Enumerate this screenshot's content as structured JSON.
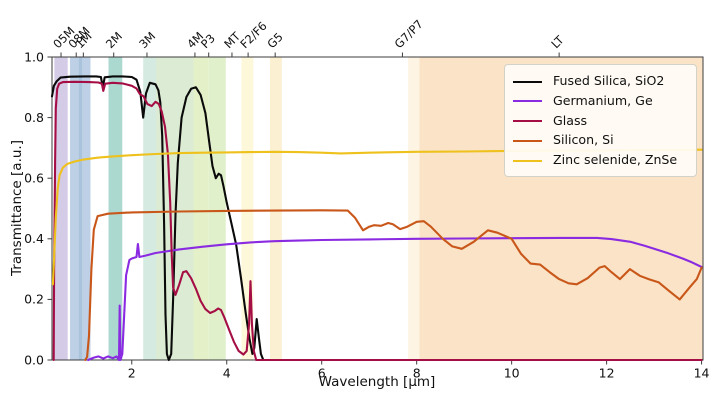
{
  "chart_data": {
    "type": "line",
    "title": "",
    "xlabel": "Wavelength [μm]",
    "ylabel": "Transmittance [a.u.]",
    "xlim": [
      0.32,
      14.03
    ],
    "ylim": [
      0.0,
      1.0
    ],
    "grid": false,
    "legend_position": "upper right",
    "x_ticks": [
      2,
      4,
      6,
      8,
      10,
      12,
      14
    ],
    "y_ticks": [
      "0.0",
      "0.2",
      "0.4",
      "0.6",
      "0.8",
      "1.0"
    ],
    "top_ticks": [
      {
        "x": 0.51,
        "label": "05M"
      },
      {
        "x": 0.83,
        "label": "08M"
      },
      {
        "x": 0.98,
        "label": "1M"
      },
      {
        "x": 1.62,
        "label": "2M"
      },
      {
        "x": 2.32,
        "label": "3M"
      },
      {
        "x": 3.33,
        "label": "4M"
      },
      {
        "x": 3.62,
        "label": "P3"
      },
      {
        "x": 4.11,
        "label": "MT"
      },
      {
        "x": 4.45,
        "label": "F2/F6"
      },
      {
        "x": 5.02,
        "label": "G5"
      },
      {
        "x": 7.7,
        "label": "G7/P7"
      },
      {
        "x": 11.0,
        "label": "LT"
      }
    ],
    "bands": [
      {
        "from": 0.37,
        "to": 0.65,
        "color": "#d4cbe6"
      },
      {
        "from": 0.7,
        "to": 0.88,
        "color": "#bdd0e5"
      },
      {
        "from": 0.88,
        "to": 0.96,
        "color": "#aac3dd"
      },
      {
        "from": 0.96,
        "to": 1.13,
        "color": "#bdd0e5"
      },
      {
        "from": 1.51,
        "to": 1.8,
        "color": "#abd9d0"
      },
      {
        "from": 2.24,
        "to": 2.51,
        "color": "#d5eae0"
      },
      {
        "from": 2.51,
        "to": 3.3,
        "color": "#dcecd4"
      },
      {
        "from": 3.3,
        "to": 3.62,
        "color": "#e4f0c8"
      },
      {
        "from": 3.62,
        "to": 3.98,
        "color": "#dff0cb"
      },
      {
        "from": 4.31,
        "to": 4.56,
        "color": "#fcf8d9"
      },
      {
        "from": 4.91,
        "to": 5.16,
        "color": "#fcf0d2"
      },
      {
        "from": 7.82,
        "to": 8.06,
        "color": "#fdf4e3"
      },
      {
        "from": 8.06,
        "to": 14.03,
        "color": "#fae3c6"
      }
    ],
    "series": [
      {
        "name": "Fused Silica, SiO2",
        "color": "#0a0a0a",
        "points": [
          [
            0.32,
            0.87
          ],
          [
            0.36,
            0.905
          ],
          [
            0.42,
            0.92
          ],
          [
            0.5,
            0.932
          ],
          [
            0.7,
            0.935
          ],
          [
            1.0,
            0.936
          ],
          [
            1.25,
            0.936
          ],
          [
            1.35,
            0.934
          ],
          [
            1.39,
            0.9
          ],
          [
            1.43,
            0.933
          ],
          [
            1.6,
            0.936
          ],
          [
            1.8,
            0.936
          ],
          [
            2.0,
            0.934
          ],
          [
            2.1,
            0.925
          ],
          [
            2.18,
            0.885
          ],
          [
            2.24,
            0.8
          ],
          [
            2.3,
            0.88
          ],
          [
            2.38,
            0.915
          ],
          [
            2.5,
            0.91
          ],
          [
            2.56,
            0.89
          ],
          [
            2.6,
            0.85
          ],
          [
            2.64,
            0.74
          ],
          [
            2.68,
            0.45
          ],
          [
            2.71,
            0.15
          ],
          [
            2.74,
            0.02
          ],
          [
            2.78,
            0.0
          ],
          [
            2.83,
            0.02
          ],
          [
            2.87,
            0.2
          ],
          [
            2.92,
            0.48
          ],
          [
            2.97,
            0.65
          ],
          [
            3.05,
            0.8
          ],
          [
            3.15,
            0.868
          ],
          [
            3.25,
            0.895
          ],
          [
            3.35,
            0.9
          ],
          [
            3.45,
            0.875
          ],
          [
            3.55,
            0.815
          ],
          [
            3.63,
            0.72
          ],
          [
            3.7,
            0.64
          ],
          [
            3.77,
            0.6
          ],
          [
            3.83,
            0.615
          ],
          [
            3.88,
            0.61
          ],
          [
            3.93,
            0.575
          ],
          [
            4.0,
            0.52
          ],
          [
            4.1,
            0.45
          ],
          [
            4.2,
            0.38
          ],
          [
            4.3,
            0.27
          ],
          [
            4.4,
            0.155
          ],
          [
            4.48,
            0.07
          ],
          [
            4.54,
            0.02
          ],
          [
            4.58,
            0.04
          ],
          [
            4.63,
            0.135
          ],
          [
            4.68,
            0.07
          ],
          [
            4.72,
            0.02
          ],
          [
            4.77,
            0.0
          ],
          [
            6.0,
            0.0
          ],
          [
            10.0,
            0.0
          ],
          [
            14.0,
            0.0
          ]
        ]
      },
      {
        "name": "Germanium, Ge",
        "color": "#8a2be2",
        "points": [
          [
            1.08,
            0.0
          ],
          [
            1.2,
            0.008
          ],
          [
            1.3,
            0.012
          ],
          [
            1.4,
            0.005
          ],
          [
            1.5,
            0.012
          ],
          [
            1.6,
            0.006
          ],
          [
            1.68,
            0.012
          ],
          [
            1.73,
            0.0
          ],
          [
            1.745,
            0.18
          ],
          [
            1.76,
            0.0
          ],
          [
            1.8,
            0.02
          ],
          [
            1.84,
            0.15
          ],
          [
            1.88,
            0.28
          ],
          [
            1.95,
            0.33
          ],
          [
            2.0,
            0.335
          ],
          [
            2.1,
            0.34
          ],
          [
            2.13,
            0.383
          ],
          [
            2.16,
            0.34
          ],
          [
            2.3,
            0.345
          ],
          [
            2.5,
            0.353
          ],
          [
            3.0,
            0.365
          ],
          [
            3.5,
            0.374
          ],
          [
            4.0,
            0.382
          ],
          [
            4.5,
            0.388
          ],
          [
            5.0,
            0.392
          ],
          [
            5.5,
            0.394
          ],
          [
            6.0,
            0.396
          ],
          [
            7.0,
            0.398
          ],
          [
            8.0,
            0.4
          ],
          [
            9.0,
            0.401
          ],
          [
            10.0,
            0.402
          ],
          [
            11.0,
            0.403
          ],
          [
            11.8,
            0.403
          ],
          [
            12.1,
            0.399
          ],
          [
            12.5,
            0.39
          ],
          [
            12.8,
            0.377
          ],
          [
            13.0,
            0.367
          ],
          [
            13.3,
            0.352
          ],
          [
            13.6,
            0.335
          ],
          [
            13.8,
            0.322
          ],
          [
            14.0,
            0.307
          ]
        ]
      },
      {
        "name": "Glass",
        "color": "#a50e45",
        "points": [
          [
            0.355,
            0.0
          ],
          [
            0.365,
            0.3
          ],
          [
            0.385,
            0.65
          ],
          [
            0.4,
            0.83
          ],
          [
            0.43,
            0.895
          ],
          [
            0.47,
            0.912
          ],
          [
            0.55,
            0.917
          ],
          [
            0.8,
            0.918
          ],
          [
            1.1,
            0.917
          ],
          [
            1.3,
            0.916
          ],
          [
            1.37,
            0.912
          ],
          [
            1.4,
            0.888
          ],
          [
            1.44,
            0.912
          ],
          [
            1.6,
            0.915
          ],
          [
            1.8,
            0.913
          ],
          [
            2.0,
            0.905
          ],
          [
            2.1,
            0.896
          ],
          [
            2.17,
            0.878
          ],
          [
            2.25,
            0.87
          ],
          [
            2.33,
            0.845
          ],
          [
            2.42,
            0.838
          ],
          [
            2.5,
            0.852
          ],
          [
            2.57,
            0.845
          ],
          [
            2.63,
            0.82
          ],
          [
            2.7,
            0.77
          ],
          [
            2.76,
            0.68
          ],
          [
            2.81,
            0.52
          ],
          [
            2.84,
            0.35
          ],
          [
            2.87,
            0.24
          ],
          [
            2.92,
            0.215
          ],
          [
            3.0,
            0.25
          ],
          [
            3.08,
            0.29
          ],
          [
            3.15,
            0.293
          ],
          [
            3.25,
            0.27
          ],
          [
            3.35,
            0.235
          ],
          [
            3.45,
            0.195
          ],
          [
            3.55,
            0.168
          ],
          [
            3.65,
            0.155
          ],
          [
            3.75,
            0.162
          ],
          [
            3.82,
            0.17
          ],
          [
            3.88,
            0.165
          ],
          [
            3.95,
            0.14
          ],
          [
            4.05,
            0.1
          ],
          [
            4.15,
            0.06
          ],
          [
            4.25,
            0.03
          ],
          [
            4.35,
            0.018
          ],
          [
            4.42,
            0.03
          ],
          [
            4.47,
            0.12
          ],
          [
            4.5,
            0.26
          ],
          [
            4.53,
            0.12
          ],
          [
            4.57,
            0.03
          ],
          [
            4.62,
            0.0
          ],
          [
            7.0,
            0.0
          ],
          [
            11.0,
            0.0
          ],
          [
            14.0,
            0.0
          ]
        ]
      },
      {
        "name": "Silicon, Si",
        "color": "#c9571a",
        "points": [
          [
            1.02,
            0.0
          ],
          [
            1.06,
            0.01
          ],
          [
            1.1,
            0.08
          ],
          [
            1.15,
            0.3
          ],
          [
            1.2,
            0.43
          ],
          [
            1.28,
            0.475
          ],
          [
            1.5,
            0.483
          ],
          [
            2.0,
            0.487
          ],
          [
            3.0,
            0.49
          ],
          [
            4.0,
            0.492
          ],
          [
            5.0,
            0.493
          ],
          [
            6.0,
            0.494
          ],
          [
            6.55,
            0.493
          ],
          [
            6.7,
            0.47
          ],
          [
            6.87,
            0.428
          ],
          [
            7.0,
            0.44
          ],
          [
            7.1,
            0.445
          ],
          [
            7.25,
            0.443
          ],
          [
            7.4,
            0.452
          ],
          [
            7.5,
            0.448
          ],
          [
            7.65,
            0.432
          ],
          [
            7.8,
            0.44
          ],
          [
            8.0,
            0.456
          ],
          [
            8.15,
            0.458
          ],
          [
            8.3,
            0.44
          ],
          [
            8.55,
            0.4
          ],
          [
            8.75,
            0.375
          ],
          [
            8.95,
            0.367
          ],
          [
            9.2,
            0.39
          ],
          [
            9.5,
            0.428
          ],
          [
            9.7,
            0.42
          ],
          [
            10.0,
            0.4
          ],
          [
            10.2,
            0.35
          ],
          [
            10.4,
            0.318
          ],
          [
            10.6,
            0.315
          ],
          [
            10.8,
            0.29
          ],
          [
            11.0,
            0.267
          ],
          [
            11.2,
            0.253
          ],
          [
            11.37,
            0.25
          ],
          [
            11.6,
            0.27
          ],
          [
            11.85,
            0.305
          ],
          [
            11.96,
            0.31
          ],
          [
            12.1,
            0.29
          ],
          [
            12.28,
            0.267
          ],
          [
            12.49,
            0.3
          ],
          [
            12.7,
            0.278
          ],
          [
            12.9,
            0.266
          ],
          [
            13.1,
            0.256
          ],
          [
            13.3,
            0.23
          ],
          [
            13.54,
            0.2
          ],
          [
            13.75,
            0.24
          ],
          [
            13.9,
            0.267
          ],
          [
            14.0,
            0.305
          ]
        ]
      },
      {
        "name": "Zinc selenide, ZnSe",
        "color": "#eec11c",
        "points": [
          [
            0.34,
            0.25
          ],
          [
            0.37,
            0.36
          ],
          [
            0.4,
            0.47
          ],
          [
            0.44,
            0.565
          ],
          [
            0.48,
            0.61
          ],
          [
            0.55,
            0.635
          ],
          [
            0.65,
            0.648
          ],
          [
            0.8,
            0.655
          ],
          [
            1.0,
            0.662
          ],
          [
            1.3,
            0.668
          ],
          [
            1.6,
            0.672
          ],
          [
            2.0,
            0.676
          ],
          [
            2.5,
            0.68
          ],
          [
            3.0,
            0.683
          ],
          [
            3.5,
            0.684
          ],
          [
            4.0,
            0.685
          ],
          [
            4.5,
            0.686
          ],
          [
            5.0,
            0.687
          ],
          [
            5.5,
            0.686
          ],
          [
            6.0,
            0.684
          ],
          [
            6.4,
            0.682
          ],
          [
            7.0,
            0.684
          ],
          [
            8.0,
            0.687
          ],
          [
            9.0,
            0.688
          ],
          [
            10.0,
            0.69
          ],
          [
            11.0,
            0.691
          ],
          [
            12.0,
            0.692
          ],
          [
            13.0,
            0.693
          ],
          [
            14.0,
            0.694
          ]
        ]
      }
    ]
  }
}
